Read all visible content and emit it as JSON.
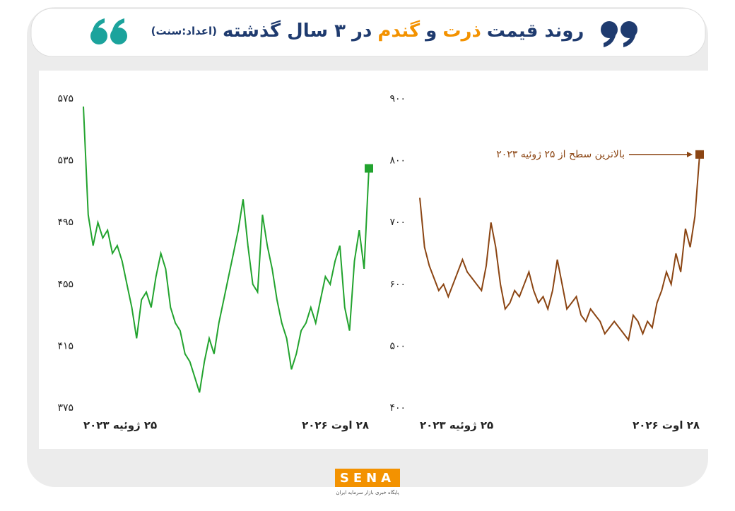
{
  "header": {
    "title": [
      {
        "text": "روند قیمت",
        "color": "#1f3b6f"
      },
      {
        "text": "ذرت",
        "color": "#f39200"
      },
      {
        "text": "و",
        "color": "#1f3b6f"
      },
      {
        "text": "گندم",
        "color": "#f39200"
      },
      {
        "text": "در ۳ سال گذشته",
        "color": "#1f3b6f"
      },
      {
        "text": "(اعداد:سنت)",
        "color": "#1f3b6f"
      }
    ]
  },
  "chart_data": [
    {
      "type": "line",
      "color": "#22a32e",
      "categories": [
        "۲۵ ژوئیه ۲۰۲۳",
        null,
        null,
        null,
        null,
        null,
        null,
        null,
        null,
        null,
        null,
        null,
        null,
        null,
        null,
        null,
        null,
        null,
        null,
        null,
        null,
        null,
        null,
        null,
        null,
        null,
        null,
        null,
        null,
        null,
        null,
        null,
        null,
        null,
        null,
        null,
        null,
        null,
        null,
        null,
        null,
        null,
        null,
        null,
        null,
        null,
        null,
        null,
        null,
        null,
        null,
        null,
        null,
        null,
        null,
        null,
        null,
        null,
        null,
        "۲۸ اوت ۲۰۲۶"
      ],
      "values": [
        570,
        500,
        480,
        495,
        485,
        490,
        475,
        480,
        470,
        455,
        440,
        420,
        445,
        450,
        440,
        460,
        475,
        465,
        440,
        430,
        425,
        410,
        405,
        395,
        385,
        405,
        420,
        410,
        430,
        445,
        460,
        475,
        490,
        510,
        480,
        455,
        450,
        500,
        480,
        465,
        445,
        430,
        420,
        400,
        410,
        425,
        430,
        440,
        430,
        445,
        460,
        455,
        470,
        480,
        440,
        425,
        470,
        490,
        465,
        530
      ],
      "ylim": [
        375,
        575
      ],
      "yticks": [
        {
          "value": 375,
          "label": "۳۷۵"
        },
        {
          "value": 415,
          "label": "۴۱۵"
        },
        {
          "value": 455,
          "label": "۴۵۵"
        },
        {
          "value": 495,
          "label": "۴۹۵"
        },
        {
          "value": 535,
          "label": "۵۳۵"
        },
        {
          "value": 575,
          "label": "۵۷۵"
        }
      ]
    },
    {
      "type": "line",
      "color": "#8b4513",
      "categories": [
        "۲۵ ژوئیه ۲۰۲۳",
        null,
        null,
        null,
        null,
        null,
        null,
        null,
        null,
        null,
        null,
        null,
        null,
        null,
        null,
        null,
        null,
        null,
        null,
        null,
        null,
        null,
        null,
        null,
        null,
        null,
        null,
        null,
        null,
        null,
        null,
        null,
        null,
        null,
        null,
        null,
        null,
        null,
        null,
        null,
        null,
        null,
        null,
        null,
        null,
        null,
        null,
        null,
        null,
        null,
        null,
        null,
        null,
        null,
        null,
        null,
        null,
        null,
        null,
        "۲۸ اوت ۲۰۲۶"
      ],
      "values": [
        740,
        660,
        630,
        610,
        590,
        600,
        580,
        600,
        620,
        640,
        620,
        610,
        600,
        590,
        630,
        700,
        660,
        600,
        560,
        570,
        590,
        580,
        600,
        620,
        590,
        570,
        580,
        560,
        590,
        640,
        600,
        560,
        570,
        580,
        550,
        540,
        560,
        550,
        540,
        520,
        530,
        540,
        530,
        520,
        510,
        550,
        540,
        520,
        540,
        530,
        570,
        590,
        620,
        600,
        650,
        620,
        690,
        660,
        710,
        810
      ],
      "ylim": [
        400,
        900
      ],
      "yticks": [
        {
          "value": 400,
          "label": "۴۰۰"
        },
        {
          "value": 500,
          "label": "۵۰۰"
        },
        {
          "value": 600,
          "label": "۶۰۰"
        },
        {
          "value": 700,
          "label": "۷۰۰"
        },
        {
          "value": 800,
          "label": "۸۰۰"
        },
        {
          "value": 900,
          "label": "۹۰۰"
        }
      ],
      "annotation": "بالاترین سطح از ۲۵ ژوئیه ۲۰۲۳"
    }
  ],
  "footer": {
    "logo": "SENA",
    "tagline": "پایگاه خبری بازار سرمایه ایران"
  }
}
